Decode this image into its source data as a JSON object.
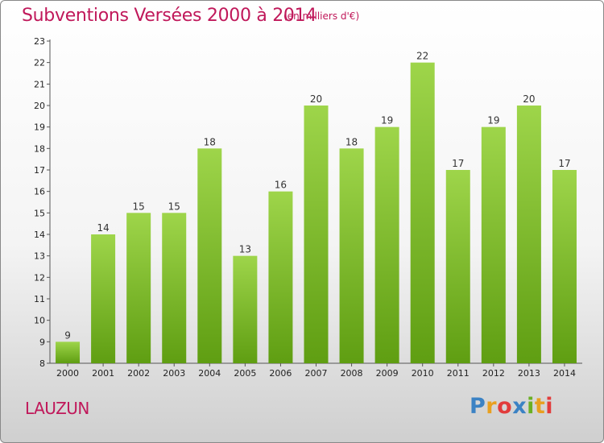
{
  "header": {
    "title": "Subventions Versées 2000 à 2014",
    "subtitle": "(en milliers d'€)"
  },
  "commune": "LAUZUN",
  "logo": {
    "text": "Proxiti",
    "letters": [
      "P",
      "r",
      "o",
      "x",
      "i",
      "t",
      "i"
    ],
    "colors": [
      "#3b82c4",
      "#e8a020",
      "#e23c3c",
      "#3b82c4",
      "#6ab023",
      "#e8a020",
      "#e23c3c"
    ]
  },
  "colors": {
    "bar_light": "#9ed54a",
    "bar_dark": "#5f9e12",
    "title": "#c0185a"
  },
  "chart_data": {
    "type": "bar",
    "title": "Subventions Versées 2000 à 2014",
    "subtitle": "(en milliers d'€)",
    "categories": [
      "2000",
      "2001",
      "2002",
      "2003",
      "2004",
      "2005",
      "2006",
      "2007",
      "2008",
      "2009",
      "2010",
      "2011",
      "2012",
      "2013",
      "2014"
    ],
    "values": [
      9,
      14,
      15,
      15,
      18,
      13,
      16,
      20,
      18,
      19,
      22,
      17,
      19,
      20,
      17
    ],
    "yticks": [
      8,
      9,
      10,
      11,
      12,
      13,
      14,
      15,
      16,
      17,
      18,
      19,
      20,
      21,
      22,
      23
    ],
    "ylim": [
      8,
      23
    ],
    "grid": false,
    "legend": "none"
  }
}
